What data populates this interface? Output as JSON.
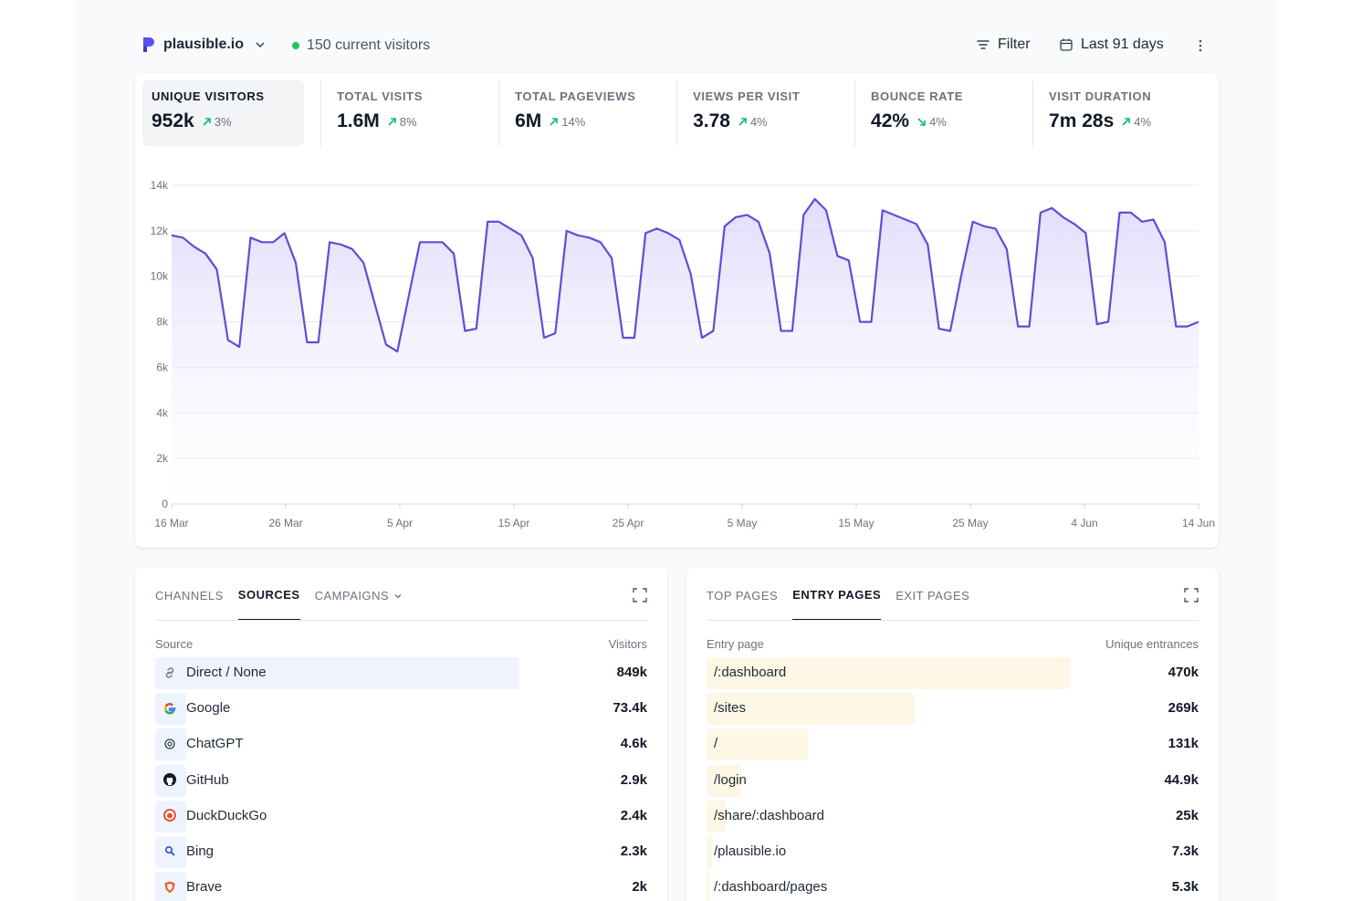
{
  "header": {
    "site_name": "plausible.io",
    "current_visitors": "150 current visitors",
    "filter_label": "Filter",
    "date_range": "Last 91 days"
  },
  "stats": [
    {
      "label": "UNIQUE VISITORS",
      "value": "952k",
      "change": "3%",
      "direction": "up"
    },
    {
      "label": "TOTAL VISITS",
      "value": "1.6M",
      "change": "8%",
      "direction": "up"
    },
    {
      "label": "TOTAL PAGEVIEWS",
      "value": "6M",
      "change": "14%",
      "direction": "up"
    },
    {
      "label": "VIEWS PER VISIT",
      "value": "3.78",
      "change": "4%",
      "direction": "up"
    },
    {
      "label": "BOUNCE RATE",
      "value": "42%",
      "change": "4%",
      "direction": "down"
    },
    {
      "label": "VISIT DURATION",
      "value": "7m 28s",
      "change": "4%",
      "direction": "up"
    }
  ],
  "colors": {
    "line": "#5b50d6",
    "area_top": "#ddd9fb",
    "positive": "#10b981",
    "sources_bar": "#eef4fe",
    "pages_bar": "#fef7e6"
  },
  "chart_data": {
    "type": "area",
    "ylim": [
      0,
      14000
    ],
    "y_ticks": [
      "0",
      "2k",
      "4k",
      "6k",
      "8k",
      "10k",
      "12k",
      "14k"
    ],
    "x_ticks": [
      "16 Mar",
      "26 Mar",
      "5 Apr",
      "15 Apr",
      "25 Apr",
      "5 May",
      "15 May",
      "25 May",
      "4 Jun",
      "14 Jun"
    ],
    "series": [
      {
        "values": [
          11800,
          11700,
          11300,
          11000,
          10300,
          7200,
          6900,
          11700,
          11500,
          11500,
          11900,
          10600,
          7100,
          7100,
          11500,
          11400,
          11200,
          10600,
          8800,
          7000,
          6700,
          9100,
          11500,
          11500,
          11500,
          11000,
          7600,
          7700,
          12400,
          12400,
          12100,
          11800,
          10800,
          7300,
          7500,
          12000,
          11800,
          11700,
          11500,
          10800,
          7300,
          7300,
          11900,
          12100,
          11900,
          11600,
          10100,
          7300,
          7600,
          12200,
          12600,
          12700,
          12400,
          11000,
          7600,
          7600,
          12700,
          13400,
          12900,
          10900,
          10700,
          8000,
          8000,
          12900,
          12700,
          12500,
          12300,
          11400,
          7700,
          7600,
          10100,
          12400,
          12200,
          12100,
          11200,
          7800,
          7800,
          12800,
          13000,
          12600,
          12300,
          11900,
          7900,
          8000,
          12800,
          12800,
          12400,
          12500,
          11500,
          7800,
          7800,
          8000
        ]
      }
    ]
  },
  "sources": {
    "tabs": [
      "CHANNELS",
      "SOURCES",
      "CAMPAIGNS"
    ],
    "active_tab": "SOURCES",
    "col_left": "Source",
    "col_right": "Visitors",
    "rows": [
      {
        "label": "Direct / None",
        "value": "849k",
        "num": 849000,
        "icon": "link-icon"
      },
      {
        "label": "Google",
        "value": "73.4k",
        "num": 73400,
        "icon": "google-icon"
      },
      {
        "label": "ChatGPT",
        "value": "4.6k",
        "num": 4600,
        "icon": "chatgpt-icon"
      },
      {
        "label": "GitHub",
        "value": "2.9k",
        "num": 2900,
        "icon": "github-icon"
      },
      {
        "label": "DuckDuckGo",
        "value": "2.4k",
        "num": 2400,
        "icon": "duckduckgo-icon"
      },
      {
        "label": "Bing",
        "value": "2.3k",
        "num": 2300,
        "icon": "bing-icon"
      },
      {
        "label": "Brave",
        "value": "2k",
        "num": 2000,
        "icon": "brave-icon"
      }
    ]
  },
  "pages": {
    "tabs": [
      "TOP PAGES",
      "ENTRY PAGES",
      "EXIT PAGES"
    ],
    "active_tab": "ENTRY PAGES",
    "col_left": "Entry page",
    "col_right": "Unique entrances",
    "rows": [
      {
        "label": "/:dashboard",
        "value": "470k",
        "num": 470000
      },
      {
        "label": "/sites",
        "value": "269k",
        "num": 269000
      },
      {
        "label": "/",
        "value": "131k",
        "num": 131000
      },
      {
        "label": "/login",
        "value": "44.9k",
        "num": 44900
      },
      {
        "label": "/share/:dashboard",
        "value": "25k",
        "num": 25000
      },
      {
        "label": "/plausible.io",
        "value": "7.3k",
        "num": 7300
      },
      {
        "label": "/:dashboard/pages",
        "value": "5.3k",
        "num": 5300
      }
    ]
  }
}
